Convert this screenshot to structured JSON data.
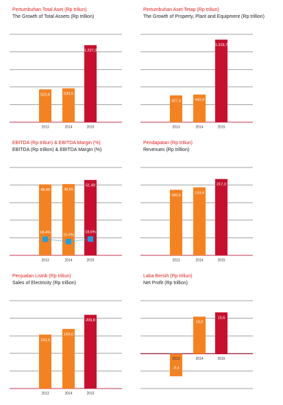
{
  "chart_data": [
    {
      "type": "bar",
      "title": "Pertumbuhan Total Aset (Rp triliun)",
      "subtitle": "The Growth of Total Assets (Rp trillion)",
      "categories": [
        "2013",
        "2014",
        "2015"
      ],
      "values": [
        523.6,
        539.5,
        1227.3
      ],
      "value_labels": [
        "523,6",
        "539,5",
        "1.227,3"
      ],
      "colors": [
        "#f58220",
        "#f58220",
        "#c8102e"
      ],
      "ylim": [
        0,
        1400
      ]
    },
    {
      "type": "bar",
      "title": "Pertumbuhan Aset Tetap (Rp triliun)",
      "subtitle": "The Growth of Property, Plant and Equipment (Rp trillion)",
      "categories": [
        "2013",
        "2014",
        "2015"
      ],
      "values": [
        427.4,
        440.4,
        1315.7
      ],
      "value_labels": [
        "427,4",
        "440,4",
        "1.315,7"
      ],
      "colors": [
        "#f58220",
        "#f58220",
        "#c8102e"
      ],
      "ylim": [
        0,
        1400
      ]
    },
    {
      "type": "bar",
      "title": "EBITDA (Rp triliun) & EBITDA Margin (%)",
      "subtitle": "EBITDA (Rp trillion) & EBITDA Margin (%)",
      "categories": [
        "2013",
        "2014",
        "2015"
      ],
      "values": [
        48.49,
        48.69,
        51.49
      ],
      "value_labels": [
        "48,49",
        "48,69",
        "51,49"
      ],
      "colors": [
        "#f58220",
        "#f58220",
        "#c8102e"
      ],
      "ylim": [
        0,
        60
      ],
      "line": {
        "values": [
          18.4,
          15.6,
          18.6
        ],
        "value_labels": [
          "18,4%",
          "15,6%",
          "18,6%"
        ],
        "color": "#1ba1e2",
        "axis": "y2"
      },
      "y2lim": [
        0,
        100
      ]
    },
    {
      "type": "bar",
      "title": "Pendapatan (Rp triliun)",
      "subtitle": "Revenues (Rp trillion)",
      "categories": [
        "2013",
        "2014",
        "2015"
      ],
      "values": [
        186.6,
        193.4,
        217.3
      ],
      "value_labels": [
        "186,6",
        "193,4",
        "217,3"
      ],
      "colors": [
        "#f58220",
        "#f58220",
        "#c8102e"
      ],
      "ylim": [
        0,
        250
      ]
    },
    {
      "type": "bar",
      "title": "Penjualan Listrik (Rp triliun)",
      "subtitle": "Sales of Electricity (Rp trillion)",
      "categories": [
        "2013",
        "2014",
        "2015"
      ],
      "values": [
        153.5,
        169.6,
        209.8
      ],
      "value_labels": [
        "153,5",
        "169,6",
        "209,8"
      ],
      "colors": [
        "#f58220",
        "#f58220",
        "#c8102e"
      ],
      "ylim": [
        0,
        250
      ]
    },
    {
      "type": "bar",
      "title": "Laba Bersih (Rp triliun)",
      "subtitle": "Net Profit (Rp trillion)",
      "categories": [
        "2013",
        "2014",
        "2015"
      ],
      "values": [
        -8.4,
        14.0,
        15.6
      ],
      "value_labels": [
        "-8,4",
        "14,0",
        "15,6"
      ],
      "colors": [
        "#f58220",
        "#f58220",
        "#c8102e"
      ],
      "ylim": [
        -13,
        20
      ]
    }
  ]
}
